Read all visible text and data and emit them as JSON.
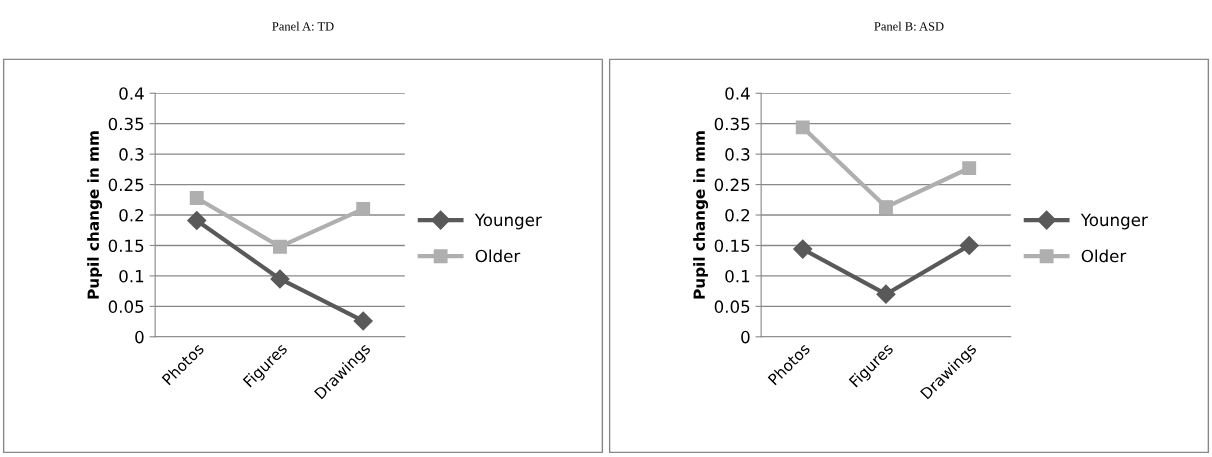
{
  "chart_data": [
    {
      "type": "line",
      "title": "Panel A: TD",
      "ylabel": "Pupil change in mm",
      "categories": [
        "Photos",
        "Figures",
        "Drawings"
      ],
      "ylim": [
        0,
        0.4
      ],
      "yticks": [
        0,
        0.05,
        0.1,
        0.15,
        0.2,
        0.25,
        0.3,
        0.35,
        0.4
      ],
      "grid": "y",
      "legend": "right",
      "series": [
        {
          "name": "Younger",
          "color": "#595959",
          "marker": "diamond",
          "values": [
            0.191,
            0.095,
            0.026
          ]
        },
        {
          "name": "Older",
          "color": "#afafaf",
          "marker": "square",
          "values": [
            0.228,
            0.148,
            0.21
          ]
        }
      ]
    },
    {
      "type": "line",
      "title": "Panel B: ASD",
      "ylabel": "Pupil change in mm",
      "categories": [
        "Photos",
        "Figures",
        "Drawings"
      ],
      "ylim": [
        0,
        0.4
      ],
      "yticks": [
        0,
        0.05,
        0.1,
        0.15,
        0.2,
        0.25,
        0.3,
        0.35,
        0.4
      ],
      "grid": "y",
      "legend": "right",
      "series": [
        {
          "name": "Younger",
          "color": "#595959",
          "marker": "diamond",
          "values": [
            0.144,
            0.07,
            0.15
          ]
        },
        {
          "name": "Older",
          "color": "#afafaf",
          "marker": "square",
          "values": [
            0.344,
            0.213,
            0.277
          ]
        }
      ]
    }
  ]
}
